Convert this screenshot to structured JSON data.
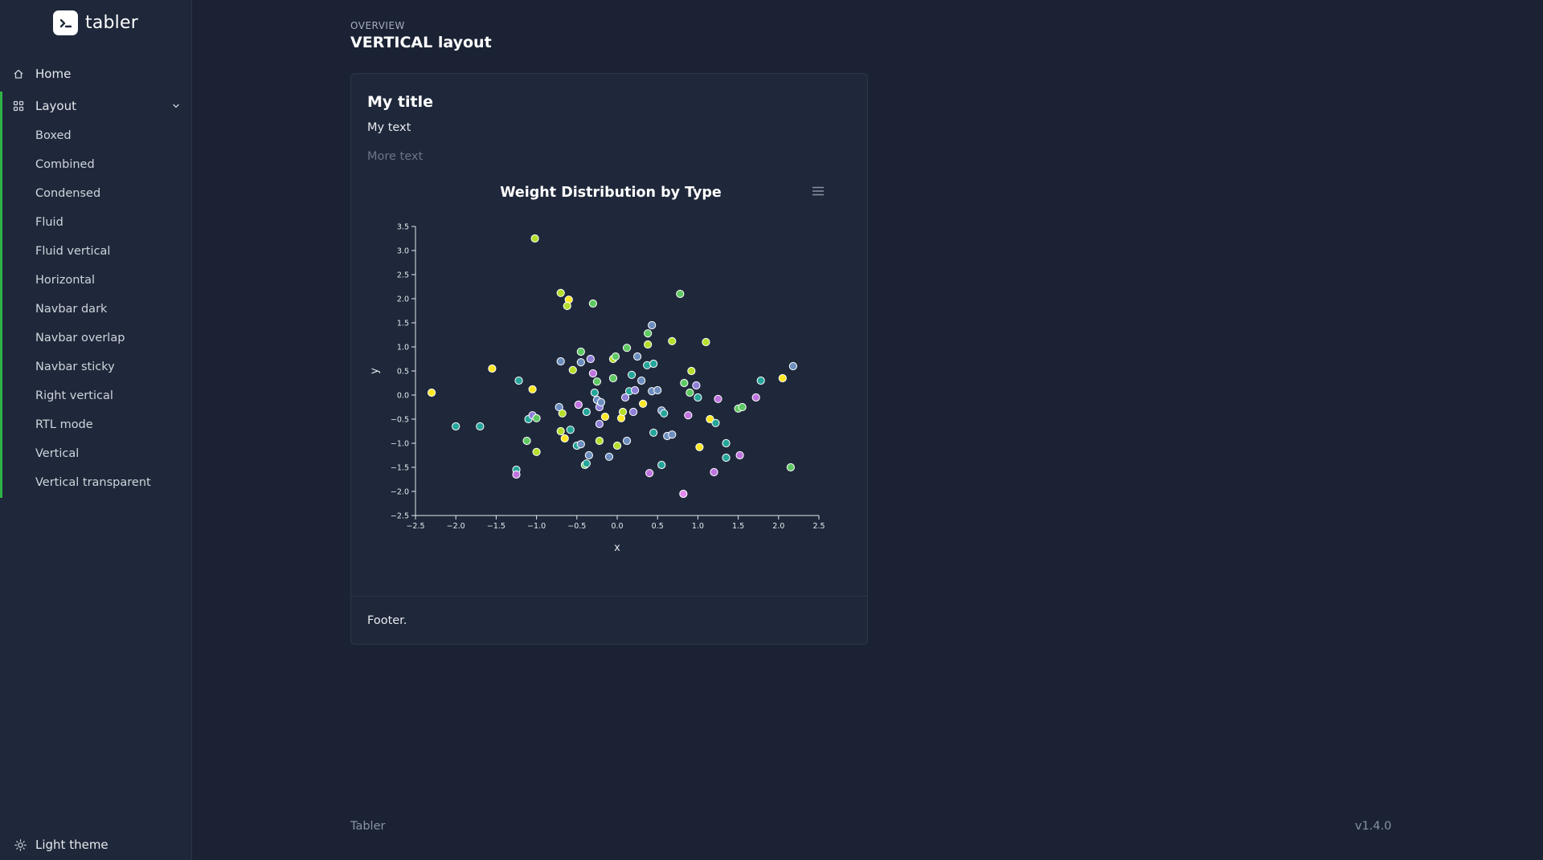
{
  "brand": {
    "name": "tabler"
  },
  "sidebar": {
    "items": [
      {
        "label": "Home",
        "icon": "home-icon"
      },
      {
        "label": "Layout",
        "icon": "layout-grid-icon",
        "expanded": true
      }
    ],
    "layout_submenu": [
      "Boxed",
      "Combined",
      "Condensed",
      "Fluid",
      "Fluid vertical",
      "Horizontal",
      "Navbar dark",
      "Navbar overlap",
      "Navbar sticky",
      "Right vertical",
      "RTL mode",
      "Vertical",
      "Vertical transparent"
    ],
    "theme_toggle": {
      "label": "Light theme",
      "icon": "sun-icon"
    }
  },
  "header": {
    "pretitle": "OVERVIEW",
    "title": "VERTICAL layout"
  },
  "card": {
    "title": "My title",
    "text": "My text",
    "muted_text": "More text",
    "footer": "Footer."
  },
  "footer": {
    "left": "Tabler",
    "right": "v1.4.0"
  },
  "colors": {
    "accent": "#2fb344",
    "background": "#1a2234",
    "card": "#1f283a"
  },
  "chart_data": {
    "type": "scatter",
    "title": "Weight Distribution by Type",
    "xlabel": "x",
    "ylabel": "y",
    "xlim": [
      -2.5,
      2.5
    ],
    "ylim": [
      -2.5,
      3.5
    ],
    "xticks": [
      "−2.5",
      "−2.0",
      "−1.5",
      "−1.0",
      "−0.5",
      "0.0",
      "0.5",
      "1.0",
      "1.5",
      "2.0",
      "2.5"
    ],
    "yticks": [
      "−2.5",
      "−2.0",
      "−1.5",
      "−1.0",
      "−0.5",
      "0.0",
      "0.5",
      "1.0",
      "1.5",
      "2.0",
      "2.5",
      "3.0",
      "3.5"
    ],
    "palette": [
      "#fde725",
      "#b5de2b",
      "#35b779",
      "#26a69a",
      "#5ec962",
      "#6c8ebf",
      "#8f7fd8",
      "#c074e0",
      "#e58aee"
    ],
    "points": [
      {
        "x": -2.3,
        "y": 0.05,
        "c": 0
      },
      {
        "x": -2.0,
        "y": -0.65,
        "c": 3
      },
      {
        "x": -1.7,
        "y": -0.65,
        "c": 3
      },
      {
        "x": -1.55,
        "y": 0.55,
        "c": 0
      },
      {
        "x": -1.22,
        "y": 0.3,
        "c": 3
      },
      {
        "x": -1.25,
        "y": -1.55,
        "c": 3
      },
      {
        "x": -1.25,
        "y": -1.65,
        "c": 7
      },
      {
        "x": -1.12,
        "y": -0.95,
        "c": 4
      },
      {
        "x": -1.1,
        "y": -0.5,
        "c": 3
      },
      {
        "x": -1.05,
        "y": -0.42,
        "c": 6
      },
      {
        "x": -1.05,
        "y": 0.12,
        "c": 0
      },
      {
        "x": -1.0,
        "y": -1.18,
        "c": 1
      },
      {
        "x": -1.0,
        "y": -0.48,
        "c": 4
      },
      {
        "x": -1.02,
        "y": 3.25,
        "c": 1
      },
      {
        "x": -0.7,
        "y": 2.12,
        "c": 1
      },
      {
        "x": -0.6,
        "y": 1.98,
        "c": 0
      },
      {
        "x": -0.62,
        "y": 1.85,
        "c": 1
      },
      {
        "x": -0.3,
        "y": 1.9,
        "c": 4
      },
      {
        "x": -0.7,
        "y": 0.7,
        "c": 5
      },
      {
        "x": -0.55,
        "y": 0.52,
        "c": 1
      },
      {
        "x": -0.45,
        "y": 0.9,
        "c": 4
      },
      {
        "x": -0.45,
        "y": 0.68,
        "c": 5
      },
      {
        "x": -0.33,
        "y": 0.75,
        "c": 6
      },
      {
        "x": -0.3,
        "y": 0.45,
        "c": 7
      },
      {
        "x": -0.25,
        "y": 0.28,
        "c": 4
      },
      {
        "x": -0.28,
        "y": 0.05,
        "c": 3
      },
      {
        "x": -0.25,
        "y": -0.1,
        "c": 5
      },
      {
        "x": -0.22,
        "y": -0.25,
        "c": 6
      },
      {
        "x": -0.2,
        "y": -0.15,
        "c": 5
      },
      {
        "x": -0.38,
        "y": -0.35,
        "c": 3
      },
      {
        "x": -0.48,
        "y": -0.2,
        "c": 7
      },
      {
        "x": -0.72,
        "y": -0.25,
        "c": 5
      },
      {
        "x": -0.68,
        "y": -0.38,
        "c": 1
      },
      {
        "x": -0.7,
        "y": -0.75,
        "c": 1
      },
      {
        "x": -0.65,
        "y": -0.9,
        "c": 0
      },
      {
        "x": -0.58,
        "y": -0.72,
        "c": 3
      },
      {
        "x": -0.5,
        "y": -1.05,
        "c": 3
      },
      {
        "x": -0.45,
        "y": -1.02,
        "c": 5
      },
      {
        "x": -0.35,
        "y": -1.25,
        "c": 5
      },
      {
        "x": -0.4,
        "y": -1.45,
        "c": 4
      },
      {
        "x": -0.38,
        "y": -1.42,
        "c": 3
      },
      {
        "x": -0.22,
        "y": -0.95,
        "c": 1
      },
      {
        "x": -0.22,
        "y": -0.6,
        "c": 6
      },
      {
        "x": -0.15,
        "y": -0.45,
        "c": 0
      },
      {
        "x": -0.1,
        "y": -1.28,
        "c": 5
      },
      {
        "x": 0.0,
        "y": -1.05,
        "c": 1
      },
      {
        "x": 0.05,
        "y": -0.48,
        "c": 0
      },
      {
        "x": 0.07,
        "y": -0.35,
        "c": 1
      },
      {
        "x": 0.12,
        "y": -0.95,
        "c": 5
      },
      {
        "x": 0.1,
        "y": -0.05,
        "c": 6
      },
      {
        "x": 0.15,
        "y": 0.08,
        "c": 3
      },
      {
        "x": 0.2,
        "y": -0.35,
        "c": 6
      },
      {
        "x": 0.22,
        "y": 0.1,
        "c": 6
      },
      {
        "x": 0.32,
        "y": -0.18,
        "c": 0
      },
      {
        "x": -0.05,
        "y": 0.75,
        "c": 1
      },
      {
        "x": -0.02,
        "y": 0.8,
        "c": 4
      },
      {
        "x": 0.12,
        "y": 0.98,
        "c": 4
      },
      {
        "x": -0.05,
        "y": 0.35,
        "c": 4
      },
      {
        "x": 0.18,
        "y": 0.42,
        "c": 3
      },
      {
        "x": 0.25,
        "y": 0.8,
        "c": 5
      },
      {
        "x": 0.3,
        "y": 0.3,
        "c": 5
      },
      {
        "x": 0.37,
        "y": 0.62,
        "c": 3
      },
      {
        "x": 0.38,
        "y": 1.05,
        "c": 1
      },
      {
        "x": 0.38,
        "y": 1.28,
        "c": 4
      },
      {
        "x": 0.43,
        "y": 1.45,
        "c": 5
      },
      {
        "x": 0.45,
        "y": 0.65,
        "c": 3
      },
      {
        "x": 0.43,
        "y": 0.08,
        "c": 5
      },
      {
        "x": 0.5,
        "y": 0.1,
        "c": 5
      },
      {
        "x": 0.55,
        "y": -0.32,
        "c": 5
      },
      {
        "x": 0.58,
        "y": -0.38,
        "c": 3
      },
      {
        "x": 0.45,
        "y": -0.78,
        "c": 3
      },
      {
        "x": 0.62,
        "y": -0.85,
        "c": 5
      },
      {
        "x": 0.68,
        "y": -0.82,
        "c": 5
      },
      {
        "x": 0.55,
        "y": -1.45,
        "c": 3
      },
      {
        "x": 0.4,
        "y": -1.62,
        "c": 7
      },
      {
        "x": 0.68,
        "y": 1.12,
        "c": 1
      },
      {
        "x": 0.78,
        "y": 2.1,
        "c": 4
      },
      {
        "x": 0.83,
        "y": 0.25,
        "c": 4
      },
      {
        "x": 0.9,
        "y": 0.05,
        "c": 4
      },
      {
        "x": 0.92,
        "y": 0.5,
        "c": 1
      },
      {
        "x": 0.88,
        "y": -0.42,
        "c": 7
      },
      {
        "x": 0.98,
        "y": 0.2,
        "c": 6
      },
      {
        "x": 1.0,
        "y": -0.05,
        "c": 3
      },
      {
        "x": 1.02,
        "y": -1.08,
        "c": 0
      },
      {
        "x": 0.82,
        "y": -2.05,
        "c": 8
      },
      {
        "x": 1.1,
        "y": 1.1,
        "c": 1
      },
      {
        "x": 1.15,
        "y": -0.5,
        "c": 0
      },
      {
        "x": 1.22,
        "y": -0.58,
        "c": 3
      },
      {
        "x": 1.25,
        "y": -0.08,
        "c": 7
      },
      {
        "x": 1.2,
        "y": -1.6,
        "c": 7
      },
      {
        "x": 1.35,
        "y": -1.0,
        "c": 3
      },
      {
        "x": 1.35,
        "y": -1.3,
        "c": 3
      },
      {
        "x": 1.5,
        "y": -0.28,
        "c": 4
      },
      {
        "x": 1.55,
        "y": -0.25,
        "c": 4
      },
      {
        "x": 1.52,
        "y": -1.25,
        "c": 7
      },
      {
        "x": 1.72,
        "y": -0.05,
        "c": 7
      },
      {
        "x": 1.78,
        "y": 0.3,
        "c": 3
      },
      {
        "x": 2.05,
        "y": 0.35,
        "c": 0
      },
      {
        "x": 2.15,
        "y": -1.5,
        "c": 4
      },
      {
        "x": 2.18,
        "y": 0.6,
        "c": 5
      }
    ]
  }
}
